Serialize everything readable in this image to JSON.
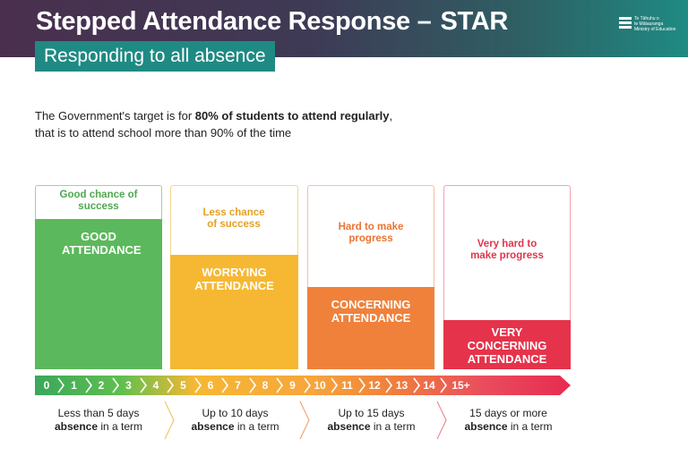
{
  "header": {
    "title": "Stepped Attendance Response –",
    "title_emphasis": "STAR",
    "subtitle": "Responding to all absence",
    "logo_lines": [
      "Te Tāhuhu o",
      "te Mātauranga",
      "Ministry of Education"
    ]
  },
  "intro": {
    "line1_prefix": "The Government's target is for ",
    "line1_bold": "80% of students to attend regularly",
    "line1_suffix": ",",
    "line2": "that is to attend school more than 90% of the time"
  },
  "columns": [
    {
      "chance": "Good chance of success",
      "label": "GOOD ATTENDANCE",
      "color": "#5cb85c",
      "level": 0.95,
      "footer_top": "Less than 5 days",
      "footer_bold": "absence",
      "footer_rest": " in a term"
    },
    {
      "chance": "Less chance of success",
      "label": "WORRYING ATTENDANCE",
      "color": "#f6b833",
      "level": 0.7,
      "footer_top": "Up to 10 days",
      "footer_bold": "absence",
      "footer_rest": " in a term"
    },
    {
      "chance": "Hard to make progress",
      "label": "CONCERNING ATTENDANCE",
      "color": "#f0813b",
      "level": 0.45,
      "footer_top": "Up to 15 days",
      "footer_bold": "absence",
      "footer_rest": " in a term"
    },
    {
      "chance": "Very hard to make progress",
      "label": "VERY CONCERNING ATTENDANCE",
      "color": "#e5334b",
      "level": 0.27,
      "footer_top": "15 days or more",
      "footer_bold": "absence",
      "footer_rest": " in a term"
    }
  ],
  "axis_ticks": [
    "0",
    "1",
    "2",
    "3",
    "4",
    "5",
    "6",
    "7",
    "8",
    "9",
    "10",
    "11",
    "12",
    "13",
    "14",
    "15+"
  ],
  "colors": {
    "good": "#5cb85c",
    "worrying": "#f6b833",
    "concerning": "#f0813b",
    "very_concerning": "#e5334b",
    "teal": "#1f8a83"
  }
}
